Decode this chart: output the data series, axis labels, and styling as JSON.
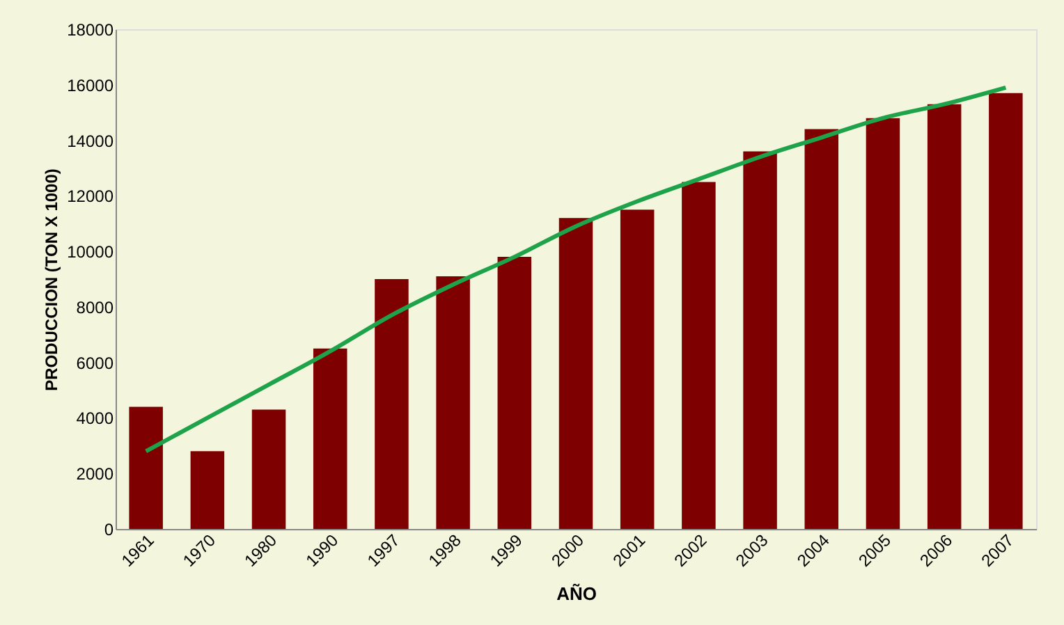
{
  "chart_data": {
    "type": "bar",
    "xlabel": "AÑO",
    "ylabel": "PRODUCCION (TON X 1000)",
    "categories": [
      "1961",
      "1970",
      "1980",
      "1990",
      "1997",
      "1998",
      "1999",
      "2000",
      "2001",
      "2002",
      "2003",
      "2004",
      "2005",
      "2006",
      "2007"
    ],
    "series": [
      {
        "color": "#7f0000",
        "values": [
          4400,
          2800,
          4300,
          6500,
          9000,
          9100,
          9800,
          11200,
          11500,
          12500,
          13600,
          14400,
          14800,
          15300,
          15700
        ]
      },
      {
        "type": "line",
        "color": "#1fa34a",
        "values": [
          2800,
          4000,
          5200,
          6400,
          7700,
          8800,
          9800,
          10900,
          11800,
          12600,
          13400,
          14100,
          14800,
          15300,
          15900
        ]
      }
    ],
    "ylim": [
      0,
      18000
    ],
    "yticks": [
      0,
      2000,
      4000,
      6000,
      8000,
      10000,
      12000,
      14000,
      16000,
      18000
    ],
    "grid": false
  }
}
